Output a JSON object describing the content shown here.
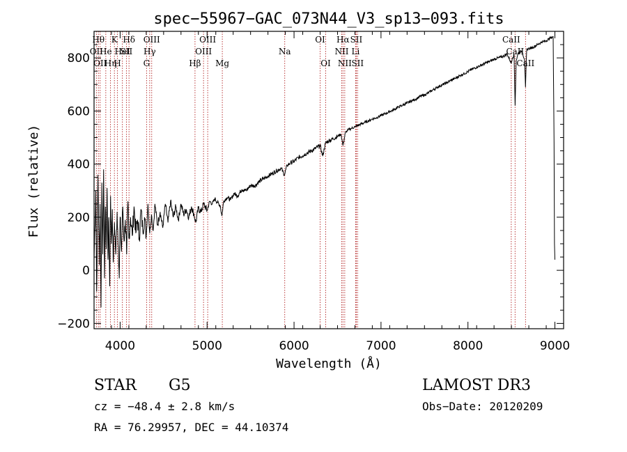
{
  "chart_data": {
    "type": "line",
    "title": "spec−55967−GAC_073N44_V3_sp13−093.fits",
    "xlabel": "Wavelength (Å)",
    "ylabel": "Flux (relative)",
    "xlim": [
      3700,
      9100
    ],
    "ylim": [
      -220,
      900
    ],
    "xticks": [
      4000,
      5000,
      6000,
      7000,
      8000,
      9000
    ],
    "xtick_labels": [
      "4000",
      "5000",
      "6000",
      "7000",
      "8000",
      "9000"
    ],
    "yticks": [
      -200,
      0,
      200,
      400,
      600,
      800
    ],
    "ytick_labels": [
      "−200",
      "0",
      "200",
      "400",
      "600",
      "800"
    ],
    "x_minor_step": 200,
    "y_minor_step": 50,
    "line_color": "#000000",
    "line_marker_color": "#b22222",
    "series": [
      {
        "name": "flux",
        "points": [
          [
            3700,
            40
          ],
          [
            3720,
            300
          ],
          [
            3730,
            -80
          ],
          [
            3745,
            360
          ],
          [
            3760,
            20
          ],
          [
            3770,
            250
          ],
          [
            3780,
            -140
          ],
          [
            3790,
            330
          ],
          [
            3800,
            60
          ],
          [
            3810,
            380
          ],
          [
            3820,
            -30
          ],
          [
            3830,
            240
          ],
          [
            3840,
            80
          ],
          [
            3850,
            310
          ],
          [
            3860,
            40
          ],
          [
            3870,
            200
          ],
          [
            3880,
            -60
          ],
          [
            3890,
            280
          ],
          [
            3900,
            100
          ],
          [
            3910,
            230
          ],
          [
            3920,
            30
          ],
          [
            3935,
            180
          ],
          [
            3950,
            60
          ],
          [
            3965,
            220
          ],
          [
            3980,
            90
          ],
          [
            3990,
            -30
          ],
          [
            4000,
            200
          ],
          [
            4015,
            70
          ],
          [
            4030,
            240
          ],
          [
            4045,
            110
          ],
          [
            4060,
            190
          ],
          [
            4075,
            60
          ],
          [
            4090,
            260
          ],
          [
            4100,
            120
          ],
          [
            4120,
            200
          ],
          [
            4140,
            130
          ],
          [
            4160,
            240
          ],
          [
            4180,
            140
          ],
          [
            4200,
            190
          ],
          [
            4220,
            120
          ],
          [
            4240,
            230
          ],
          [
            4260,
            150
          ],
          [
            4280,
            200
          ],
          [
            4300,
            130
          ],
          [
            4320,
            250
          ],
          [
            4340,
            140
          ],
          [
            4360,
            210
          ],
          [
            4380,
            150
          ],
          [
            4400,
            250
          ],
          [
            4430,
            170
          ],
          [
            4460,
            220
          ],
          [
            4490,
            160
          ],
          [
            4520,
            250
          ],
          [
            4550,
            180
          ],
          [
            4580,
            260
          ],
          [
            4610,
            200
          ],
          [
            4640,
            240
          ],
          [
            4670,
            190
          ],
          [
            4700,
            250
          ],
          [
            4730,
            210
          ],
          [
            4760,
            230
          ],
          [
            4790,
            200
          ],
          [
            4820,
            240
          ],
          [
            4850,
            210
          ],
          [
            4870,
            180
          ],
          [
            4900,
            235
          ],
          [
            4930,
            220
          ],
          [
            4960,
            250
          ],
          [
            5000,
            225
          ],
          [
            5030,
            260
          ],
          [
            5060,
            250
          ],
          [
            5090,
            270
          ],
          [
            5120,
            255
          ],
          [
            5150,
            245
          ],
          [
            5170,
            205
          ],
          [
            5190,
            260
          ],
          [
            5230,
            275
          ],
          [
            5270,
            265
          ],
          [
            5310,
            290
          ],
          [
            5350,
            280
          ],
          [
            5400,
            305
          ],
          [
            5450,
            300
          ],
          [
            5500,
            320
          ],
          [
            5550,
            318
          ],
          [
            5600,
            335
          ],
          [
            5650,
            345
          ],
          [
            5700,
            355
          ],
          [
            5750,
            365
          ],
          [
            5800,
            375
          ],
          [
            5850,
            385
          ],
          [
            5890,
            360
          ],
          [
            5920,
            395
          ],
          [
            5960,
            405
          ],
          [
            6000,
            410
          ],
          [
            6050,
            425
          ],
          [
            6100,
            432
          ],
          [
            6150,
            442
          ],
          [
            6200,
            450
          ],
          [
            6250,
            460
          ],
          [
            6300,
            470
          ],
          [
            6330,
            430
          ],
          [
            6360,
            478
          ],
          [
            6400,
            488
          ],
          [
            6450,
            495
          ],
          [
            6500,
            505
          ],
          [
            6540,
            512
          ],
          [
            6563,
            470
          ],
          [
            6590,
            518
          ],
          [
            6620,
            528
          ],
          [
            6660,
            535
          ],
          [
            6700,
            540
          ],
          [
            6750,
            548
          ],
          [
            6800,
            555
          ],
          [
            6850,
            562
          ],
          [
            6900,
            570
          ],
          [
            6950,
            575
          ],
          [
            7000,
            583
          ],
          [
            7050,
            590
          ],
          [
            7100,
            598
          ],
          [
            7150,
            605
          ],
          [
            7200,
            615
          ],
          [
            7250,
            622
          ],
          [
            7300,
            630
          ],
          [
            7350,
            638
          ],
          [
            7400,
            645
          ],
          [
            7450,
            655
          ],
          [
            7500,
            660
          ],
          [
            7550,
            670
          ],
          [
            7600,
            680
          ],
          [
            7650,
            690
          ],
          [
            7700,
            698
          ],
          [
            7750,
            705
          ],
          [
            7800,
            715
          ],
          [
            7850,
            722
          ],
          [
            7900,
            732
          ],
          [
            7950,
            740
          ],
          [
            8000,
            748
          ],
          [
            8050,
            758
          ],
          [
            8100,
            765
          ],
          [
            8150,
            772
          ],
          [
            8200,
            780
          ],
          [
            8250,
            787
          ],
          [
            8300,
            795
          ],
          [
            8350,
            800
          ],
          [
            8400,
            805
          ],
          [
            8450,
            815
          ],
          [
            8498,
            780
          ],
          [
            8510,
            800
          ],
          [
            8530,
            810
          ],
          [
            8542,
            620
          ],
          [
            8555,
            790
          ],
          [
            8580,
            820
          ],
          [
            8620,
            825
          ],
          [
            8650,
            795
          ],
          [
            8662,
            690
          ],
          [
            8675,
            830
          ],
          [
            8700,
            835
          ],
          [
            8750,
            840
          ],
          [
            8800,
            850
          ],
          [
            8850,
            860
          ],
          [
            8900,
            865
          ],
          [
            8950,
            875
          ],
          [
            8980,
            880
          ],
          [
            8990,
            480
          ],
          [
            8995,
            100
          ],
          [
            9000,
            40
          ]
        ]
      }
    ],
    "line_labels": [
      {
        "wave": 3727,
        "row": 1,
        "label": "OII"
      },
      {
        "wave": 3750,
        "row": 0,
        "label": "Hθ"
      },
      {
        "wave": 3770,
        "row": 2,
        "label": "OII"
      },
      {
        "wave": 3835,
        "row": 1,
        "label": "He"
      },
      {
        "wave": 3889,
        "row": 2,
        "label": "Hη"
      },
      {
        "wave": 3934,
        "row": 0,
        "label": "K"
      },
      {
        "wave": 3969,
        "row": 2,
        "label": "H"
      },
      {
        "wave": 4026,
        "row": 1,
        "label": "HeI"
      },
      {
        "wave": 4072,
        "row": 1,
        "label": "SII"
      },
      {
        "wave": 4102,
        "row": 0,
        "label": "Hδ"
      },
      {
        "wave": 4304,
        "row": 2,
        "label": "G"
      },
      {
        "wave": 4340,
        "row": 1,
        "label": "Hγ"
      },
      {
        "wave": 4363,
        "row": 0,
        "label": "OIII"
      },
      {
        "wave": 4861,
        "row": 2,
        "label": "Hβ"
      },
      {
        "wave": 4959,
        "row": 1,
        "label": "OIII"
      },
      {
        "wave": 5007,
        "row": 0,
        "label": "OIII"
      },
      {
        "wave": 5175,
        "row": 2,
        "label": "Mg"
      },
      {
        "wave": 5893,
        "row": 1,
        "label": "Na"
      },
      {
        "wave": 6300,
        "row": 0,
        "label": "OI"
      },
      {
        "wave": 6364,
        "row": 2,
        "label": "OI"
      },
      {
        "wave": 6548,
        "row": 1,
        "label": "NII"
      },
      {
        "wave": 6563,
        "row": 0,
        "label": "Hα"
      },
      {
        "wave": 6583,
        "row": 2,
        "label": "NII"
      },
      {
        "wave": 6708,
        "row": 1,
        "label": "Li"
      },
      {
        "wave": 6716,
        "row": 0,
        "label": "SII"
      },
      {
        "wave": 6731,
        "row": 2,
        "label": "SII"
      },
      {
        "wave": 8498,
        "row": 0,
        "label": "CaII"
      },
      {
        "wave": 8542,
        "row": 1,
        "label": "CaII"
      },
      {
        "wave": 8662,
        "row": 2,
        "label": "CaII"
      }
    ]
  },
  "info": {
    "class": "STAR",
    "subclass": "G5",
    "survey": "LAMOST DR3",
    "cz": "cz = −48.4 ± 2.8 km/s",
    "obs_date": "Obs−Date: 20120209",
    "coords": "RA =  76.29957, DEC =  44.10374"
  }
}
